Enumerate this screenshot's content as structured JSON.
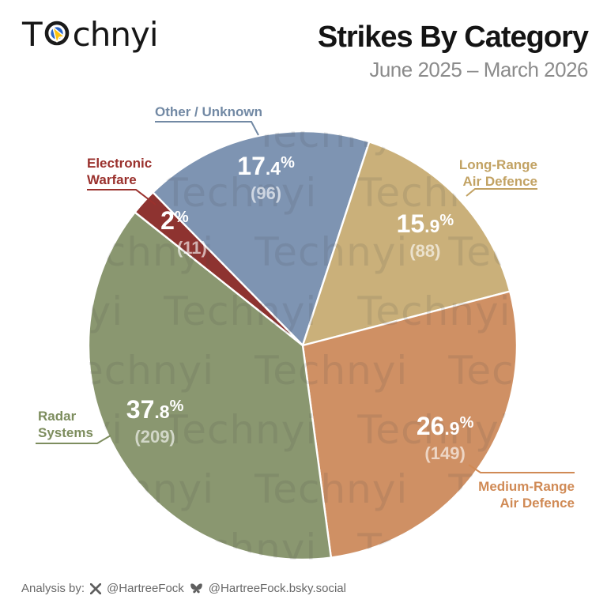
{
  "header": {
    "logo_prefix": "T",
    "logo_suffix": "chnyi",
    "title": "Strikes By Category",
    "subtitle": "June 2025 – March 2026"
  },
  "watermark_text": "Technyi",
  "chart_data": {
    "type": "pie",
    "title": "Strikes By Category",
    "subtitle": "June 2025 – March 2026",
    "start_angle_deg": -44.4,
    "legend_position": "callouts",
    "slices": [
      {
        "label": "Other / Unknown",
        "label_lines": [
          "Other / Unknown"
        ],
        "value": 96,
        "pct": 17.4,
        "color": "#7e94b2",
        "label_color": "#7289a4"
      },
      {
        "label": "Long-Range Air Defence",
        "label_lines": [
          "Long-Range",
          "Air Defence"
        ],
        "value": 88,
        "pct": 15.9,
        "color": "#cab07a",
        "label_color": "#c2a263"
      },
      {
        "label": "Medium-Range Air Defence",
        "label_lines": [
          "Medium-Range",
          "Air Defence"
        ],
        "value": 149,
        "pct": 26.9,
        "color": "#cf9064",
        "label_color": "#d08a55"
      },
      {
        "label": "Radar Systems",
        "label_lines": [
          "Radar",
          "Systems"
        ],
        "value": 209,
        "pct": 37.8,
        "color": "#8a9770",
        "label_color": "#7d8d5e"
      },
      {
        "label": "Electronic Warfare",
        "label_lines": [
          "Electronic",
          "Warfare"
        ],
        "value": 11,
        "pct": 2,
        "color": "#8e3330",
        "label_color": "#9a312d"
      }
    ]
  },
  "footer": {
    "prefix": "Analysis by:",
    "x_handle": "@HartreeFock",
    "bsky_handle": "@HartreeFock.bsky.social"
  }
}
